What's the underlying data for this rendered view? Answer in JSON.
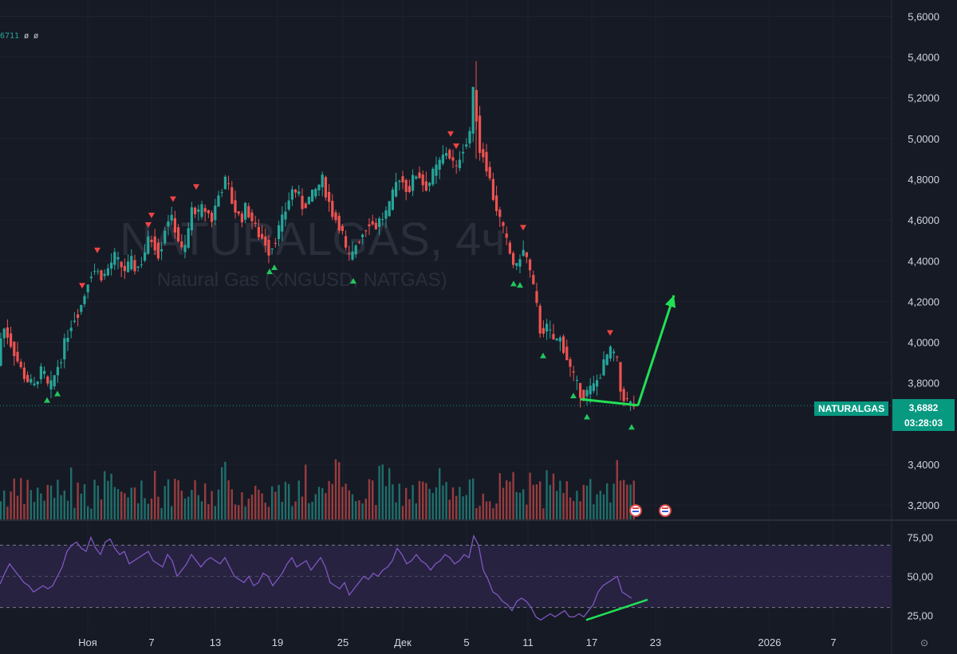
{
  "chart_data": {
    "type": "candlestick",
    "watermark": {
      "symbol": "NATURALGAS, 4ч",
      "description": "Natural Gas (XNGUSD, NATGAS)"
    },
    "indicator_legend": {
      "value": "6711",
      "extra": "ø ø"
    },
    "price_axis": {
      "ticks": [
        "5,6000",
        "5,4000",
        "5,2000",
        "5,0000",
        "4,8000",
        "4,6000",
        "4,4000",
        "4,2000",
        "4,0000",
        "3,8000",
        "3,4000",
        "3,2000"
      ],
      "tick_values": [
        5.6,
        5.4,
        5.2,
        5.0,
        4.8,
        4.6,
        4.4,
        4.2,
        4.0,
        3.8,
        3.4,
        3.2
      ],
      "range": [
        3.13,
        5.68
      ]
    },
    "time_axis": {
      "labels": [
        "Ноя",
        "7",
        "13",
        "19",
        "25",
        "Дек",
        "5",
        "11",
        "17",
        "23",
        "2026",
        "7"
      ]
    },
    "last_price": {
      "symbol": "NATURALGAS",
      "value": "3,6882",
      "countdown": "03:28:03",
      "numeric": 3.6882,
      "color": "#089981"
    },
    "price_path": [
      [
        0,
        3.92
      ],
      [
        5,
        4.08
      ],
      [
        10,
        4.05
      ],
      [
        15,
        4.0
      ],
      [
        20,
        3.95
      ],
      [
        25,
        3.9
      ],
      [
        30,
        3.85
      ],
      [
        35,
        3.82
      ],
      [
        40,
        3.8
      ],
      [
        45,
        3.78
      ],
      [
        50,
        3.84
      ],
      [
        55,
        3.86
      ],
      [
        60,
        3.82
      ],
      [
        63,
        3.76
      ],
      [
        68,
        3.8
      ],
      [
        72,
        3.86
      ],
      [
        78,
        3.92
      ],
      [
        85,
        4.02
      ],
      [
        92,
        4.1
      ],
      [
        100,
        4.15
      ],
      [
        106,
        4.2
      ],
      [
        112,
        4.3
      ],
      [
        118,
        4.36
      ],
      [
        125,
        4.34
      ],
      [
        132,
        4.32
      ],
      [
        140,
        4.38
      ],
      [
        146,
        4.42
      ],
      [
        152,
        4.38
      ],
      [
        160,
        4.35
      ],
      [
        166,
        4.4
      ],
      [
        172,
        4.36
      ],
      [
        178,
        4.38
      ],
      [
        184,
        4.45
      ],
      [
        190,
        4.52
      ],
      [
        196,
        4.48
      ],
      [
        202,
        4.42
      ],
      [
        208,
        4.55
      ],
      [
        214,
        4.62
      ],
      [
        220,
        4.58
      ],
      [
        226,
        4.5
      ],
      [
        232,
        4.42
      ],
      [
        238,
        4.55
      ],
      [
        244,
        4.68
      ],
      [
        250,
        4.62
      ],
      [
        256,
        4.66
      ],
      [
        262,
        4.64
      ],
      [
        268,
        4.6
      ],
      [
        274,
        4.7
      ],
      [
        280,
        4.76
      ],
      [
        286,
        4.8
      ],
      [
        292,
        4.7
      ],
      [
        298,
        4.64
      ],
      [
        304,
        4.6
      ],
      [
        310,
        4.66
      ],
      [
        316,
        4.62
      ],
      [
        322,
        4.56
      ],
      [
        328,
        4.52
      ],
      [
        334,
        4.5
      ],
      [
        340,
        4.44
      ],
      [
        346,
        4.5
      ],
      [
        352,
        4.56
      ],
      [
        358,
        4.62
      ],
      [
        364,
        4.7
      ],
      [
        370,
        4.76
      ],
      [
        376,
        4.72
      ],
      [
        382,
        4.66
      ],
      [
        388,
        4.7
      ],
      [
        394,
        4.72
      ],
      [
        400,
        4.76
      ],
      [
        406,
        4.8
      ],
      [
        412,
        4.72
      ],
      [
        418,
        4.64
      ],
      [
        424,
        4.6
      ],
      [
        430,
        4.56
      ],
      [
        436,
        4.44
      ],
      [
        442,
        4.4
      ],
      [
        448,
        4.48
      ],
      [
        454,
        4.52
      ],
      [
        460,
        4.56
      ],
      [
        466,
        4.6
      ],
      [
        472,
        4.56
      ],
      [
        478,
        4.6
      ],
      [
        484,
        4.62
      ],
      [
        490,
        4.66
      ],
      [
        496,
        4.74
      ],
      [
        502,
        4.82
      ],
      [
        508,
        4.78
      ],
      [
        514,
        4.74
      ],
      [
        520,
        4.8
      ],
      [
        526,
        4.84
      ],
      [
        532,
        4.78
      ],
      [
        538,
        4.76
      ],
      [
        544,
        4.82
      ],
      [
        550,
        4.86
      ],
      [
        556,
        4.9
      ],
      [
        562,
        4.94
      ],
      [
        568,
        4.9
      ],
      [
        574,
        4.84
      ],
      [
        580,
        4.94
      ],
      [
        586,
        4.98
      ],
      [
        590,
        4.96
      ],
      [
        594,
        5.24
      ],
      [
        598,
        5.2
      ],
      [
        602,
        4.95
      ],
      [
        608,
        4.92
      ],
      [
        614,
        4.84
      ],
      [
        620,
        4.72
      ],
      [
        626,
        4.64
      ],
      [
        632,
        4.56
      ],
      [
        638,
        4.48
      ],
      [
        644,
        4.4
      ],
      [
        650,
        4.36
      ],
      [
        656,
        4.46
      ],
      [
        662,
        4.42
      ],
      [
        668,
        4.32
      ],
      [
        674,
        4.2
      ],
      [
        680,
        4.04
      ],
      [
        686,
        4.08
      ],
      [
        692,
        4.04
      ],
      [
        698,
        4.0
      ],
      [
        704,
        4.02
      ],
      [
        710,
        3.96
      ],
      [
        716,
        3.88
      ],
      [
        722,
        3.82
      ],
      [
        728,
        3.76
      ],
      [
        734,
        3.74
      ],
      [
        740,
        3.76
      ],
      [
        746,
        3.78
      ],
      [
        752,
        3.82
      ],
      [
        758,
        3.88
      ],
      [
        764,
        3.94
      ],
      [
        770,
        3.96
      ],
      [
        776,
        3.9
      ],
      [
        780,
        3.76
      ],
      [
        786,
        3.72
      ],
      [
        790,
        3.7
      ],
      [
        795,
        3.69
      ]
    ],
    "volume_range": [
      0,
      165
    ],
    "rsi": {
      "ticks": [
        "75,00",
        "50,00",
        "25,00"
      ],
      "tick_values": [
        75,
        50,
        25
      ],
      "range": [
        15,
        85
      ],
      "band": [
        30,
        70
      ],
      "path": [
        [
          0,
          45
        ],
        [
          6,
          52
        ],
        [
          12,
          58
        ],
        [
          18,
          54
        ],
        [
          24,
          50
        ],
        [
          30,
          46
        ],
        [
          36,
          44
        ],
        [
          42,
          40
        ],
        [
          48,
          42
        ],
        [
          54,
          44
        ],
        [
          60,
          42
        ],
        [
          66,
          44
        ],
        [
          72,
          50
        ],
        [
          78,
          56
        ],
        [
          84,
          66
        ],
        [
          90,
          70
        ],
        [
          96,
          72
        ],
        [
          102,
          68
        ],
        [
          108,
          66
        ],
        [
          114,
          75
        ],
        [
          120,
          68
        ],
        [
          126,
          64
        ],
        [
          132,
          72
        ],
        [
          138,
          74
        ],
        [
          144,
          68
        ],
        [
          150,
          64
        ],
        [
          156,
          66
        ],
        [
          162,
          58
        ],
        [
          168,
          60
        ],
        [
          174,
          62
        ],
        [
          180,
          64
        ],
        [
          186,
          66
        ],
        [
          192,
          60
        ],
        [
          198,
          58
        ],
        [
          204,
          56
        ],
        [
          210,
          64
        ],
        [
          216,
          60
        ],
        [
          222,
          50
        ],
        [
          228,
          54
        ],
        [
          234,
          58
        ],
        [
          240,
          64
        ],
        [
          246,
          60
        ],
        [
          252,
          56
        ],
        [
          258,
          60
        ],
        [
          264,
          62
        ],
        [
          270,
          60
        ],
        [
          276,
          58
        ],
        [
          282,
          62
        ],
        [
          288,
          56
        ],
        [
          294,
          50
        ],
        [
          300,
          48
        ],
        [
          306,
          46
        ],
        [
          312,
          50
        ],
        [
          318,
          44
        ],
        [
          324,
          46
        ],
        [
          330,
          52
        ],
        [
          336,
          50
        ],
        [
          342,
          44
        ],
        [
          348,
          48
        ],
        [
          354,
          52
        ],
        [
          360,
          58
        ],
        [
          366,
          62
        ],
        [
          372,
          56
        ],
        [
          378,
          58
        ],
        [
          384,
          60
        ],
        [
          390,
          54
        ],
        [
          396,
          58
        ],
        [
          402,
          62
        ],
        [
          408,
          56
        ],
        [
          414,
          46
        ],
        [
          420,
          44
        ],
        [
          426,
          42
        ],
        [
          432,
          46
        ],
        [
          438,
          38
        ],
        [
          444,
          42
        ],
        [
          450,
          46
        ],
        [
          456,
          50
        ],
        [
          462,
          48
        ],
        [
          468,
          52
        ],
        [
          474,
          50
        ],
        [
          480,
          54
        ],
        [
          486,
          56
        ],
        [
          492,
          60
        ],
        [
          498,
          68
        ],
        [
          504,
          64
        ],
        [
          510,
          58
        ],
        [
          516,
          60
        ],
        [
          522,
          64
        ],
        [
          528,
          60
        ],
        [
          534,
          58
        ],
        [
          540,
          54
        ],
        [
          546,
          58
        ],
        [
          552,
          60
        ],
        [
          558,
          64
        ],
        [
          564,
          62
        ],
        [
          570,
          58
        ],
        [
          576,
          60
        ],
        [
          582,
          64
        ],
        [
          588,
          62
        ],
        [
          594,
          76
        ],
        [
          600,
          70
        ],
        [
          606,
          54
        ],
        [
          612,
          48
        ],
        [
          618,
          40
        ],
        [
          624,
          38
        ],
        [
          630,
          34
        ],
        [
          636,
          32
        ],
        [
          642,
          28
        ],
        [
          648,
          34
        ],
        [
          654,
          36
        ],
        [
          660,
          34
        ],
        [
          666,
          30
        ],
        [
          672,
          24
        ],
        [
          678,
          22
        ],
        [
          684,
          24
        ],
        [
          690,
          26
        ],
        [
          696,
          24
        ],
        [
          702,
          26
        ],
        [
          708,
          28
        ],
        [
          714,
          24
        ],
        [
          720,
          24
        ],
        [
          726,
          26
        ],
        [
          732,
          24
        ],
        [
          738,
          28
        ],
        [
          744,
          32
        ],
        [
          750,
          40
        ],
        [
          756,
          44
        ],
        [
          762,
          46
        ],
        [
          768,
          48
        ],
        [
          774,
          50
        ],
        [
          780,
          40
        ],
        [
          786,
          38
        ],
        [
          792,
          36
        ]
      ]
    },
    "buy_markers_at": [
      59,
      72,
      338,
      344,
      443,
      644,
      652,
      681,
      719,
      736,
      792
    ],
    "sell_markers_at": [
      103,
      122,
      186,
      190,
      246,
      217,
      565,
      572,
      656,
      765
    ]
  },
  "annotations": {
    "support_line": {
      "x_from": 728,
      "x_to": 800,
      "y_from": 3.72,
      "y_to": 3.69
    },
    "projection_arrow": {
      "x_from": 800,
      "x_to": 845,
      "y_from": 3.69,
      "y_to": 4.23
    },
    "rsi_divergence_line": {
      "x_from": 735,
      "x_to": 812,
      "y_from": 22,
      "y_to": 35
    },
    "color": "#22e055"
  },
  "colors": {
    "background": "#161a25",
    "up": "#26a69a",
    "down": "#ef5350",
    "rsi_line": "#7e57c2",
    "rsi_band": "#272240",
    "grid": "#1f2330"
  },
  "events": [
    "us-flag-icon",
    "us-flag-icon"
  ]
}
